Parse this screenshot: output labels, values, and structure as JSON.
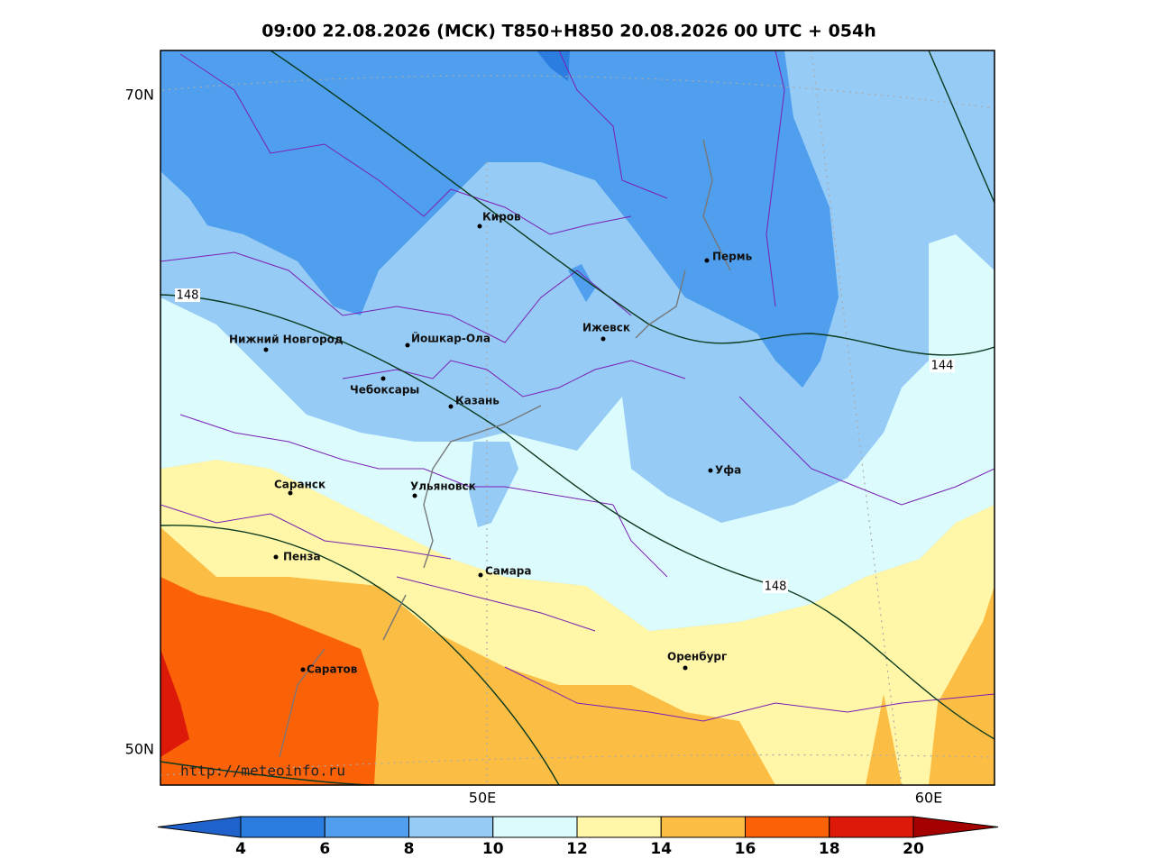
{
  "title": "09:00 22.08.2026 (МСК) T850+H850 20.08.2026 00 UTC + 054h",
  "map": {
    "lat_labels": [
      "70N",
      "50N"
    ],
    "lon_labels": [
      "50E",
      "60E"
    ],
    "cities": [
      "Киров",
      "Пермь",
      "Нижний Новгород",
      "Йошкар-Ола",
      "Ижевск",
      "Чебоксары",
      "Казань",
      "Уфа",
      "Саранск",
      "Ульяновск",
      "Пенза",
      "Самара",
      "Оренбург",
      "Саратов"
    ],
    "contour_labels": [
      148,
      144,
      148
    ],
    "credit": "http://meteoinfo.ru"
  },
  "colorbar": {
    "levels": [
      4,
      6,
      8,
      10,
      12,
      14,
      16,
      18,
      20
    ],
    "colors": [
      "#1f62cc",
      "#2b7de0",
      "#4f9fee",
      "#96cbf5",
      "#dcfbfd",
      "#fff6a8",
      "#fbbd44",
      "#fb6208",
      "#dd1a0a",
      "#a50000"
    ]
  }
}
